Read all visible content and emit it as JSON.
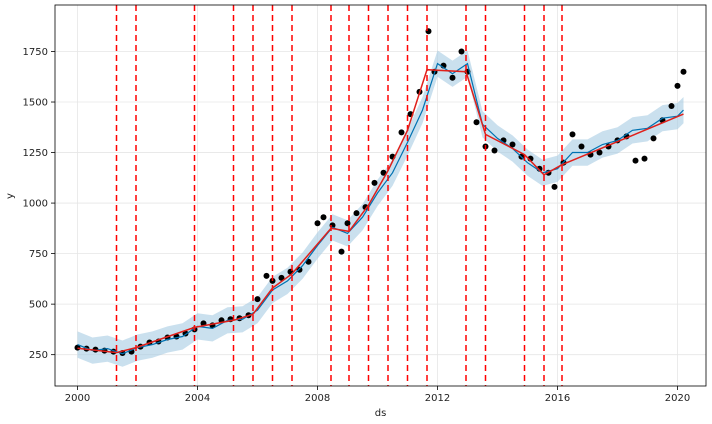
{
  "chart_data": {
    "type": "line",
    "xlabel": "ds",
    "ylabel": "y",
    "xlim": [
      1999.25,
      2020.95
    ],
    "ylim": [
      95,
      1980
    ],
    "grid": true,
    "legend": "none",
    "x_ticks": [
      2000,
      2004,
      2008,
      2012,
      2016,
      2020
    ],
    "x_tick_labels": [
      "2000",
      "2004",
      "2008",
      "2012",
      "2016",
      "2020"
    ],
    "y_ticks": [
      250,
      500,
      750,
      1000,
      1250,
      1500,
      1750
    ],
    "y_tick_labels": [
      "250",
      "500",
      "750",
      "1000",
      "1250",
      "1500",
      "1750"
    ],
    "changepoints": [
      2001.3,
      2001.95,
      2003.9,
      2005.2,
      2005.85,
      2006.5,
      2007.15,
      2008.45,
      2009.05,
      2009.7,
      2010.35,
      2011.0,
      2011.65,
      2012.95,
      2013.6,
      2014.9,
      2015.55,
      2016.15
    ],
    "trend": {
      "x": [
        2000.0,
        2001.3,
        2001.95,
        2003.9,
        2005.2,
        2005.85,
        2006.5,
        2007.15,
        2008.45,
        2009.05,
        2009.7,
        2010.35,
        2011.0,
        2011.65,
        2012.95,
        2013.6,
        2014.9,
        2015.55,
        2016.15,
        2020.2
      ],
      "y": [
        282,
        260,
        285,
        385,
        420,
        450,
        580,
        650,
        875,
        860,
        990,
        1160,
        1360,
        1660,
        1650,
        1340,
        1240,
        1140,
        1190,
        1440
      ]
    },
    "observed": {
      "x": [
        2000.0,
        2000.3,
        2000.6,
        2000.9,
        2001.2,
        2001.5,
        2001.8,
        2002.1,
        2002.4,
        2002.7,
        2003.0,
        2003.3,
        2003.6,
        2003.9,
        2004.2,
        2004.5,
        2004.8,
        2005.1,
        2005.4,
        2005.7,
        2006.0,
        2006.3,
        2006.5,
        2006.8,
        2007.1,
        2007.4,
        2007.7,
        2008.0,
        2008.2,
        2008.5,
        2008.8,
        2009.0,
        2009.3,
        2009.6,
        2009.9,
        2010.2,
        2010.5,
        2010.8,
        2011.1,
        2011.4,
        2011.7,
        2011.9,
        2012.2,
        2012.5,
        2012.8,
        2013.0,
        2013.3,
        2013.6,
        2013.9,
        2014.2,
        2014.5,
        2014.8,
        2015.1,
        2015.4,
        2015.7,
        2015.9,
        2016.2,
        2016.5,
        2016.8,
        2017.1,
        2017.4,
        2017.7,
        2018.0,
        2018.3,
        2018.6,
        2018.9,
        2019.2,
        2019.5,
        2019.8,
        2020.0,
        2020.2
      ],
      "y": [
        285,
        280,
        275,
        270,
        265,
        258,
        265,
        290,
        310,
        315,
        335,
        340,
        355,
        375,
        405,
        395,
        420,
        425,
        430,
        445,
        525,
        640,
        615,
        630,
        660,
        670,
        710,
        900,
        930,
        890,
        760,
        900,
        950,
        980,
        1100,
        1150,
        1230,
        1350,
        1440,
        1550,
        1850,
        1650,
        1680,
        1620,
        1750,
        1650,
        1400,
        1280,
        1260,
        1310,
        1290,
        1230,
        1220,
        1170,
        1150,
        1080,
        1200,
        1340,
        1280,
        1240,
        1250,
        1280,
        1310,
        1330,
        1210,
        1220,
        1320,
        1410,
        1480,
        1580,
        1650
      ]
    },
    "forecast": {
      "x": [
        2000.0,
        2000.5,
        2001.0,
        2001.5,
        2002.0,
        2002.5,
        2003.0,
        2003.5,
        2004.0,
        2004.5,
        2005.0,
        2005.5,
        2006.0,
        2006.5,
        2007.0,
        2007.5,
        2008.0,
        2008.5,
        2009.0,
        2009.5,
        2010.0,
        2010.5,
        2011.0,
        2011.5,
        2012.0,
        2012.5,
        2013.0,
        2013.5,
        2014.0,
        2014.5,
        2015.0,
        2015.5,
        2016.0,
        2016.5,
        2017.0,
        2017.5,
        2018.0,
        2018.5,
        2019.0,
        2019.5,
        2020.0,
        2020.2
      ],
      "y": [
        300,
        270,
        280,
        255,
        285,
        300,
        325,
        340,
        390,
        380,
        420,
        425,
        470,
        570,
        615,
        690,
        790,
        880,
        850,
        930,
        1050,
        1150,
        1300,
        1460,
        1690,
        1640,
        1690,
        1390,
        1320,
        1270,
        1200,
        1150,
        1170,
        1250,
        1250,
        1290,
        1310,
        1360,
        1370,
        1420,
        1430,
        1460
      ],
      "lower": [
        235,
        205,
        215,
        190,
        220,
        235,
        260,
        275,
        325,
        315,
        355,
        360,
        405,
        505,
        550,
        625,
        725,
        815,
        785,
        865,
        985,
        1085,
        1235,
        1395,
        1625,
        1575,
        1625,
        1325,
        1255,
        1205,
        1135,
        1085,
        1105,
        1185,
        1185,
        1225,
        1245,
        1295,
        1305,
        1355,
        1365,
        1395
      ],
      "upper": [
        365,
        335,
        345,
        320,
        350,
        365,
        390,
        405,
        455,
        445,
        485,
        490,
        535,
        635,
        680,
        755,
        855,
        945,
        915,
        995,
        1115,
        1215,
        1365,
        1525,
        1755,
        1705,
        1755,
        1455,
        1385,
        1335,
        1265,
        1215,
        1235,
        1315,
        1315,
        1355,
        1375,
        1425,
        1435,
        1485,
        1495,
        1525
      ]
    },
    "colors": {
      "observed": "#000000",
      "forecast": "#0072B2",
      "band": "#a6cbe3",
      "trend": "#e0201b",
      "changepoint": "#ff0000",
      "grid": "#e6e6e6"
    }
  }
}
